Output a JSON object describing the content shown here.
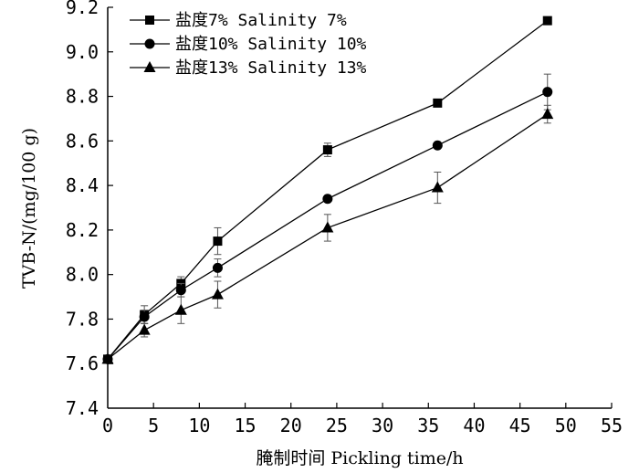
{
  "chart_data": {
    "type": "line",
    "xlabel": "腌制时间 Pickling time/h",
    "ylabel": "TVB-N/(mg/100 g)",
    "xlim": [
      0,
      55
    ],
    "ylim": [
      7.4,
      9.2
    ],
    "xticks": [
      0,
      5,
      10,
      15,
      20,
      25,
      30,
      35,
      40,
      45,
      50,
      55
    ],
    "xtick_labels": [
      "0",
      "5",
      "10",
      "15",
      "20",
      "25",
      "30",
      "35",
      "40",
      "45",
      "50",
      "55"
    ],
    "yticks": [
      7.4,
      7.6,
      7.8,
      8.0,
      8.2,
      8.4,
      8.6,
      8.8,
      9.0,
      9.2
    ],
    "ytick_labels": [
      "7.4",
      "7.6",
      "7.8",
      "8.0",
      "8.2",
      "8.4",
      "8.6",
      "8.8",
      "9.0",
      "9.2"
    ],
    "grid": false,
    "legend_position": "top-left",
    "x": [
      0,
      4,
      8,
      12,
      24,
      36,
      48
    ],
    "series": [
      {
        "name": "盐度7% Salinity 7%",
        "marker": "square",
        "values": [
          7.62,
          7.82,
          7.96,
          8.15,
          8.56,
          8.77,
          9.14
        ],
        "errors": [
          0,
          0.04,
          0.03,
          0.06,
          0.03,
          0.0,
          0.0
        ]
      },
      {
        "name": "盐度10% Salinity 10%",
        "marker": "circle",
        "values": [
          7.62,
          7.81,
          7.93,
          8.03,
          8.34,
          8.58,
          8.82
        ],
        "errors": [
          0,
          0.03,
          0.03,
          0.04,
          0.0,
          0.0,
          0.08
        ]
      },
      {
        "name": "盐度13% Salinity 13%",
        "marker": "triangle",
        "values": [
          7.62,
          7.75,
          7.84,
          7.91,
          8.21,
          8.39,
          8.72
        ],
        "errors": [
          0,
          0.03,
          0.06,
          0.06,
          0.06,
          0.07,
          0.04
        ]
      }
    ]
  }
}
